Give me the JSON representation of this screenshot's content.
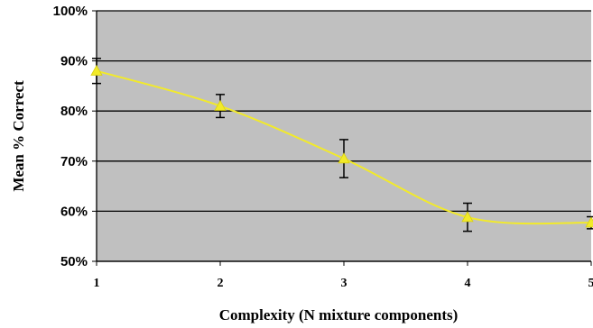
{
  "chart_data": {
    "type": "line",
    "title": "",
    "xlabel": "Complexity (N mixture components)",
    "ylabel": "Mean % Correct",
    "x": [
      1,
      2,
      3,
      4,
      5
    ],
    "x_tick_labels": [
      "1",
      "2",
      "3",
      "4",
      "5"
    ],
    "y_tick_labels": [
      "50%",
      "60%",
      "70%",
      "80%",
      "90%",
      "100%"
    ],
    "ylim": [
      50,
      100
    ],
    "xlim": [
      1,
      5
    ],
    "grid": "horizontal",
    "legend": "none",
    "series": [
      {
        "values": [
          88.0,
          81.0,
          70.5,
          58.8,
          57.7
        ],
        "error": [
          2.5,
          2.3,
          3.8,
          2.8,
          1.2
        ],
        "color": "#f2ea2a",
        "marker": "triangle"
      }
    ],
    "colors": {
      "plot_background": "#c0c0c0",
      "gridline": "#000000",
      "line": "#f2ea2a",
      "marker": "#f2ea2a"
    }
  }
}
